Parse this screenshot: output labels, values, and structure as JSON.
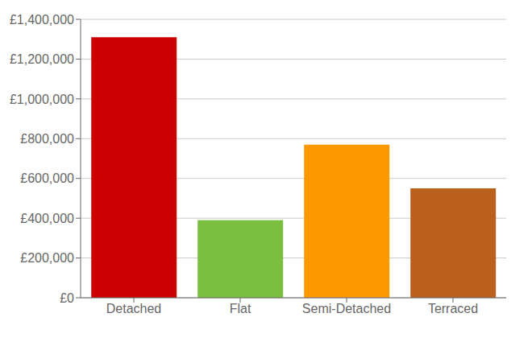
{
  "chart_data": {
    "type": "bar",
    "categories": [
      "Detached",
      "Flat",
      "Semi-Detached",
      "Terraced"
    ],
    "values": [
      1310000,
      390000,
      770000,
      550000
    ],
    "colors": [
      "#cc0000",
      "#7abf40",
      "#ff9900",
      "#b8601c"
    ],
    "ylim": [
      0,
      1400000
    ],
    "yticks": [
      {
        "value": 0,
        "label": "£0"
      },
      {
        "value": 200000,
        "label": "£200,000"
      },
      {
        "value": 400000,
        "label": "£400,000"
      },
      {
        "value": 600000,
        "label": "£600,000"
      },
      {
        "value": 800000,
        "label": "£800,000"
      },
      {
        "value": 1000000,
        "label": "£1,000,000"
      },
      {
        "value": 1200000,
        "label": "£1,200,000"
      },
      {
        "value": 1400000,
        "label": "£1,400,000"
      }
    ],
    "grid": true
  }
}
